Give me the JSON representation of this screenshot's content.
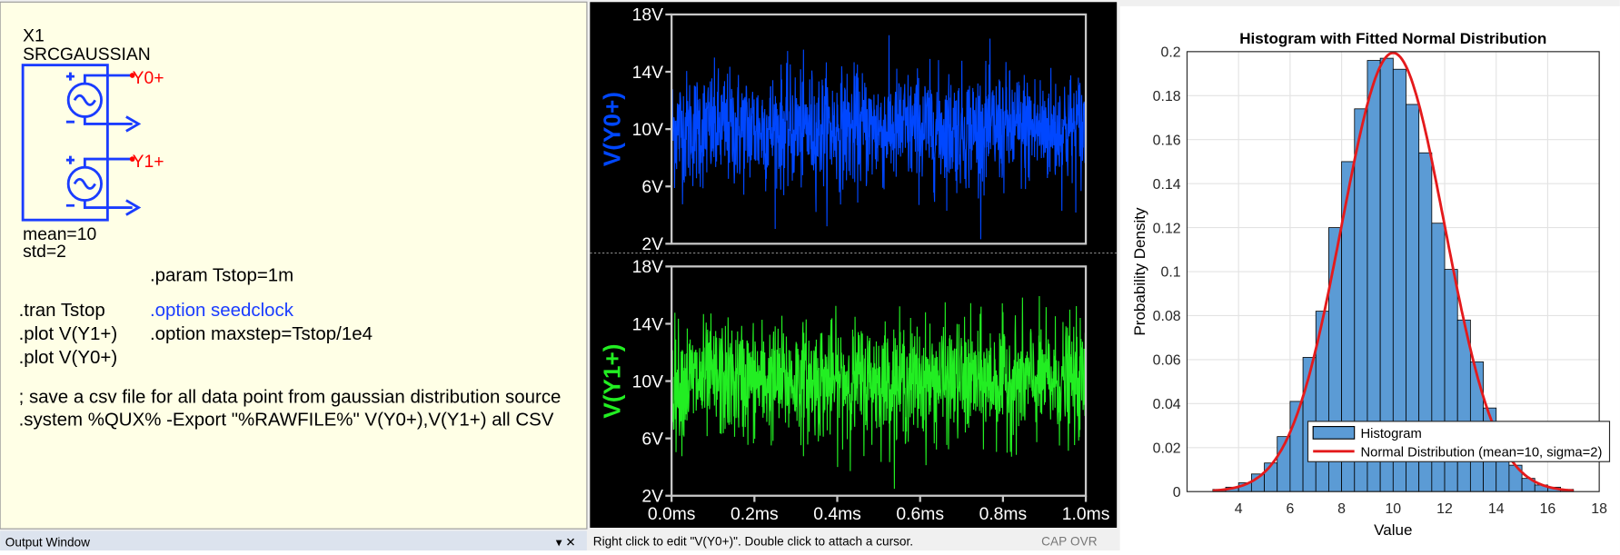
{
  "schematic": {
    "instance": "X1",
    "model": "SRCGAUSSIAN",
    "pins": [
      "Y0+",
      "Y1+"
    ],
    "params": [
      "mean=10",
      "std=2"
    ]
  },
  "directives": [
    ".param Tstop=1m",
    ".tran Tstop",
    ".option seedclock",
    ".plot V(Y1+)",
    ".option maxstep=Tstop/1e4",
    ".plot V(Y0+)",
    "; save a csv file for all data point from gaussian distribution source",
    ".system %QUX% -Export \"%RAWFILE%\" V(Y0+),V(Y1+) all CSV"
  ],
  "output_window": "Output Window",
  "waveform": {
    "panes": [
      {
        "trace": "V(Y0+)",
        "color": "#0047ff"
      },
      {
        "trace": "V(Y1+)",
        "color": "#22ee22"
      }
    ],
    "yticks": [
      "18V",
      "14V",
      "10V",
      "6V",
      "2V"
    ],
    "xticks": [
      "0.0ms",
      "0.2ms",
      "0.4ms",
      "0.6ms",
      "0.8ms",
      "1.0ms"
    ]
  },
  "status_bar": {
    "message": "Right click to edit \"V(Y0+)\".  Double click to attach a cursor.",
    "indicators": [
      "CAP",
      "OVR"
    ]
  },
  "histogram": {
    "title": "Histogram with Fitted Normal Distribution",
    "xlabel": "Value",
    "ylabel": "Probability Density",
    "xlim": [
      2,
      18
    ],
    "ylim": [
      0,
      0.2
    ],
    "xticks": [
      4,
      6,
      8,
      10,
      12,
      14,
      16,
      18
    ],
    "yticks": [
      0,
      0.02,
      0.04,
      0.06,
      0.08,
      0.1,
      0.12,
      0.14,
      0.16,
      0.18,
      0.2
    ],
    "bins": [
      3,
      3.5,
      4,
      4.5,
      5,
      5.5,
      6,
      6.5,
      7,
      7.5,
      8,
      8.5,
      9,
      9.5,
      10,
      10.5,
      11,
      11.5,
      12,
      12.5,
      13,
      13.5,
      14,
      14.5,
      15,
      15.5,
      16,
      16.5,
      17
    ],
    "values": [
      0.001,
      0.002,
      0.004,
      0.008,
      0.013,
      0.025,
      0.041,
      0.061,
      0.082,
      0.12,
      0.15,
      0.174,
      0.196,
      0.197,
      0.192,
      0.176,
      0.154,
      0.122,
      0.101,
      0.078,
      0.059,
      0.038,
      0.025,
      0.012,
      0.006,
      0.003,
      0.002,
      0.001
    ],
    "fit": {
      "mean": 10,
      "sigma": 2
    },
    "legend": [
      "Histogram",
      "Normal Distribution (mean=10, sigma=2)"
    ],
    "grid": true,
    "bar_color": "#5b9bd5",
    "fit_color": "#e41a1c"
  }
}
